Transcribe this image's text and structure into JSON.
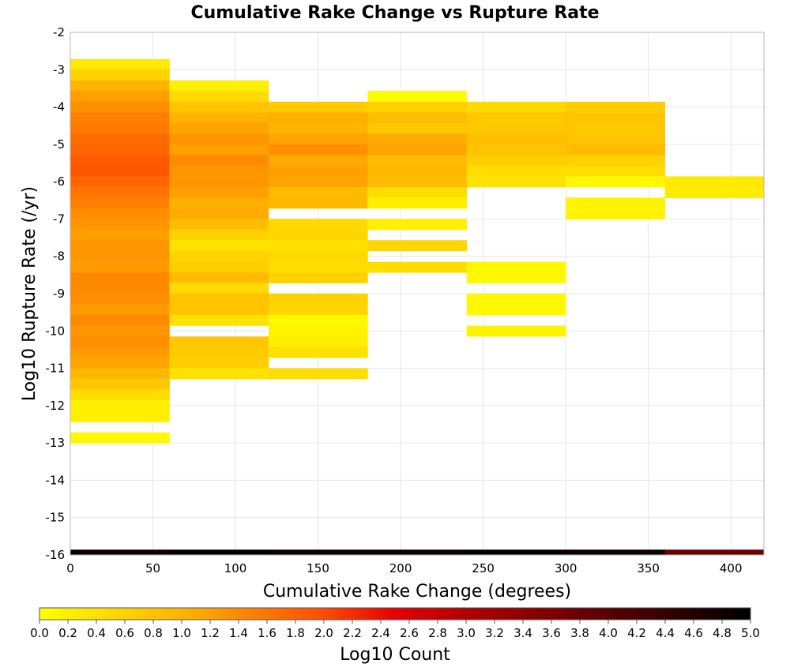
{
  "chart_data": {
    "type": "heatmap",
    "title": "Cumulative Rake Change vs Rupture Rate",
    "xlabel": "Cumulative Rake Change (degrees)",
    "ylabel": "Log10 Rupture Rate (/yr)",
    "xlim": [
      0,
      420
    ],
    "ylim": [
      -16,
      -2
    ],
    "x_ticks": [
      "0",
      "50",
      "100",
      "150",
      "200",
      "250",
      "300",
      "350",
      "400"
    ],
    "y_ticks": [
      "-2",
      "-3",
      "-4",
      "-5",
      "-6",
      "-7",
      "-8",
      "-9",
      "-10",
      "-11",
      "-12",
      "-13",
      "-14",
      "-15",
      "-16"
    ],
    "grid": true,
    "x_bin_width": 60,
    "y_bin_height": 0.2857,
    "colorbar": {
      "label": "Log10 Count",
      "min": 0.0,
      "max": 5.0,
      "ticks": [
        "0.0",
        "0.2",
        "0.4",
        "0.6",
        "0.8",
        "1.0",
        "1.2",
        "1.4",
        "1.6",
        "1.8",
        "2.0",
        "2.2",
        "2.4",
        "2.6",
        "2.8",
        "3.0",
        "3.2",
        "3.4",
        "3.6",
        "3.8",
        "4.0",
        "4.2",
        "4.4",
        "4.6",
        "4.8",
        "5.0"
      ],
      "stops": [
        {
          "v": 0.0,
          "color": "#ffff00"
        },
        {
          "v": 1.0,
          "color": "#ffb400"
        },
        {
          "v": 2.0,
          "color": "#ff4b00"
        },
        {
          "v": 2.5,
          "color": "#e60000"
        },
        {
          "v": 3.0,
          "color": "#b40000"
        },
        {
          "v": 4.0,
          "color": "#5a0000"
        },
        {
          "v": 5.0,
          "color": "#000000"
        }
      ]
    },
    "columns": [
      {
        "x0": 0,
        "cells": [
          {
            "y": -2.86,
            "v": 0.3
          },
          {
            "y": -3.14,
            "v": 0.6
          },
          {
            "y": -3.43,
            "v": 1.0
          },
          {
            "y": -3.71,
            "v": 1.2
          },
          {
            "y": -4.0,
            "v": 1.35
          },
          {
            "y": -4.29,
            "v": 1.5
          },
          {
            "y": -4.57,
            "v": 1.55
          },
          {
            "y": -4.86,
            "v": 1.7
          },
          {
            "y": -5.14,
            "v": 1.75
          },
          {
            "y": -5.43,
            "v": 1.85
          },
          {
            "y": -5.71,
            "v": 1.9
          },
          {
            "y": -6.0,
            "v": 1.75
          },
          {
            "y": -6.29,
            "v": 1.6
          },
          {
            "y": -6.57,
            "v": 1.5
          },
          {
            "y": -6.86,
            "v": 1.35
          },
          {
            "y": -7.14,
            "v": 1.3
          },
          {
            "y": -7.43,
            "v": 1.2
          },
          {
            "y": -7.71,
            "v": 1.3
          },
          {
            "y": -8.0,
            "v": 1.3
          },
          {
            "y": -8.29,
            "v": 1.25
          },
          {
            "y": -8.57,
            "v": 1.4
          },
          {
            "y": -8.86,
            "v": 1.4
          },
          {
            "y": -9.14,
            "v": 1.35
          },
          {
            "y": -9.43,
            "v": 1.25
          },
          {
            "y": -9.71,
            "v": 1.4
          },
          {
            "y": -10.0,
            "v": 1.3
          },
          {
            "y": -10.29,
            "v": 1.35
          },
          {
            "y": -10.57,
            "v": 1.25
          },
          {
            "y": -10.86,
            "v": 1.15
          },
          {
            "y": -11.14,
            "v": 0.95
          },
          {
            "y": -11.43,
            "v": 0.75
          },
          {
            "y": -11.71,
            "v": 0.45
          },
          {
            "y": -12.0,
            "v": 0.2
          },
          {
            "y": -12.29,
            "v": 0.2
          },
          {
            "y": -12.86,
            "v": 0.1
          },
          {
            "y": -16.0,
            "v": 4.85
          }
        ]
      },
      {
        "x0": 60,
        "cells": [
          {
            "y": -3.43,
            "v": 0.2
          },
          {
            "y": -3.71,
            "v": 0.5
          },
          {
            "y": -4.0,
            "v": 0.8
          },
          {
            "y": -4.29,
            "v": 1.0
          },
          {
            "y": -4.57,
            "v": 1.15
          },
          {
            "y": -4.86,
            "v": 1.3
          },
          {
            "y": -5.14,
            "v": 1.2
          },
          {
            "y": -5.43,
            "v": 1.4
          },
          {
            "y": -5.71,
            "v": 1.3
          },
          {
            "y": -6.0,
            "v": 1.3
          },
          {
            "y": -6.29,
            "v": 1.2
          },
          {
            "y": -6.57,
            "v": 1.05
          },
          {
            "y": -6.86,
            "v": 1.1
          },
          {
            "y": -7.14,
            "v": 0.9
          },
          {
            "y": -7.43,
            "v": 0.6
          },
          {
            "y": -7.71,
            "v": 0.4
          },
          {
            "y": -8.0,
            "v": 0.6
          },
          {
            "y": -8.29,
            "v": 0.65
          },
          {
            "y": -8.57,
            "v": 0.9
          },
          {
            "y": -8.86,
            "v": 0.5
          },
          {
            "y": -9.14,
            "v": 0.8
          },
          {
            "y": -9.43,
            "v": 0.8
          },
          {
            "y": -9.71,
            "v": 0.4
          },
          {
            "y": -10.29,
            "v": 0.75
          },
          {
            "y": -10.57,
            "v": 0.7
          },
          {
            "y": -10.86,
            "v": 0.65
          },
          {
            "y": -11.14,
            "v": 0.4
          },
          {
            "y": -16.0,
            "v": 4.95
          }
        ]
      },
      {
        "x0": 120,
        "cells": [
          {
            "y": -4.0,
            "v": 0.7
          },
          {
            "y": -4.29,
            "v": 1.05
          },
          {
            "y": -4.57,
            "v": 1.0
          },
          {
            "y": -4.86,
            "v": 1.15
          },
          {
            "y": -5.14,
            "v": 1.35
          },
          {
            "y": -5.43,
            "v": 1.1
          },
          {
            "y": -5.71,
            "v": 1.2
          },
          {
            "y": -6.0,
            "v": 1.15
          },
          {
            "y": -6.29,
            "v": 0.9
          },
          {
            "y": -6.57,
            "v": 0.95
          },
          {
            "y": -7.14,
            "v": 0.5
          },
          {
            "y": -7.43,
            "v": 0.55
          },
          {
            "y": -7.71,
            "v": 0.4
          },
          {
            "y": -8.0,
            "v": 0.5
          },
          {
            "y": -8.29,
            "v": 0.45
          },
          {
            "y": -8.57,
            "v": 0.6
          },
          {
            "y": -9.14,
            "v": 0.6
          },
          {
            "y": -9.43,
            "v": 0.55
          },
          {
            "y": -9.71,
            "v": 0.1
          },
          {
            "y": -10.0,
            "v": 0.15
          },
          {
            "y": -10.29,
            "v": 0.2
          },
          {
            "y": -10.57,
            "v": 0.4
          },
          {
            "y": -11.14,
            "v": 0.45
          },
          {
            "y": -16.0,
            "v": 4.9
          }
        ]
      },
      {
        "x0": 180,
        "cells": [
          {
            "y": -3.71,
            "v": 0.05
          },
          {
            "y": -4.0,
            "v": 0.6
          },
          {
            "y": -4.29,
            "v": 0.9
          },
          {
            "y": -4.57,
            "v": 0.75
          },
          {
            "y": -4.86,
            "v": 1.1
          },
          {
            "y": -5.14,
            "v": 1.15
          },
          {
            "y": -5.43,
            "v": 0.9
          },
          {
            "y": -5.71,
            "v": 0.95
          },
          {
            "y": -6.0,
            "v": 0.9
          },
          {
            "y": -6.29,
            "v": 0.45
          },
          {
            "y": -6.57,
            "v": 0.2
          },
          {
            "y": -7.14,
            "v": 0.2
          },
          {
            "y": -7.71,
            "v": 0.55
          },
          {
            "y": -8.29,
            "v": 0.45
          },
          {
            "y": -16.0,
            "v": 4.9
          }
        ]
      },
      {
        "x0": 240,
        "cells": [
          {
            "y": -4.0,
            "v": 0.5
          },
          {
            "y": -4.29,
            "v": 0.75
          },
          {
            "y": -4.57,
            "v": 0.75
          },
          {
            "y": -4.86,
            "v": 0.85
          },
          {
            "y": -5.14,
            "v": 0.8
          },
          {
            "y": -5.43,
            "v": 0.65
          },
          {
            "y": -5.71,
            "v": 0.45
          },
          {
            "y": -6.0,
            "v": 0.4
          },
          {
            "y": -8.29,
            "v": 0.1
          },
          {
            "y": -8.57,
            "v": 0.1
          },
          {
            "y": -9.14,
            "v": 0.1
          },
          {
            "y": -9.43,
            "v": 0.1
          },
          {
            "y": -10.0,
            "v": 0.15
          },
          {
            "y": -16.0,
            "v": 4.95
          }
        ]
      },
      {
        "x0": 300,
        "cells": [
          {
            "y": -4.0,
            "v": 0.65
          },
          {
            "y": -4.29,
            "v": 0.8
          },
          {
            "y": -4.57,
            "v": 0.75
          },
          {
            "y": -4.86,
            "v": 0.8
          },
          {
            "y": -5.14,
            "v": 0.9
          },
          {
            "y": -5.43,
            "v": 0.6
          },
          {
            "y": -5.71,
            "v": 0.45
          },
          {
            "y": -6.0,
            "v": 0.1
          },
          {
            "y": -6.57,
            "v": 0.15
          },
          {
            "y": -6.86,
            "v": 0.15
          },
          {
            "y": -16.0,
            "v": 4.9
          }
        ]
      },
      {
        "x0": 360,
        "cells": [
          {
            "y": -6.0,
            "v": 0.3
          },
          {
            "y": -6.29,
            "v": 0.25
          },
          {
            "y": -16.0,
            "v": 3.8
          }
        ]
      }
    ]
  }
}
